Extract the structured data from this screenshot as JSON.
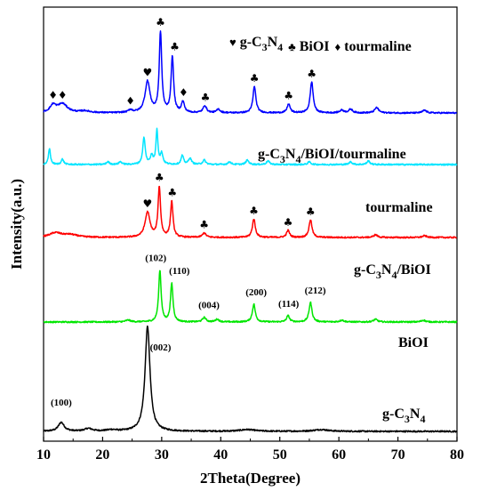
{
  "chart_data": {
    "type": "line",
    "xlabel": "2Theta(Degree)",
    "ylabel": "Intensity(a.u.)",
    "xlim": [
      10,
      80
    ],
    "xticks": [
      10,
      20,
      30,
      40,
      50,
      60,
      70,
      80
    ],
    "grid": false,
    "legend": {
      "placement": "top-right",
      "entries": [
        {
          "symbol": "♥",
          "name": "g-C",
          "sub1": "3",
          "mid": "N",
          "sub2": "4",
          "symbol_color": "#000000"
        },
        {
          "symbol": "♣",
          "name": "BiOI",
          "symbol_color": "#000000"
        },
        {
          "symbol": "♦",
          "name": "tourmaline",
          "symbol_color": "#000000"
        }
      ]
    },
    "series": [
      {
        "name": "g-C3N4",
        "label": {
          "main": "g-C",
          "sub1": "3",
          "mid": "N",
          "sub2": "4"
        },
        "color": "#000000",
        "base": 0,
        "baseline": 3,
        "peaks": [
          [
            13.0,
            10,
            0.6
          ],
          [
            17.6,
            3,
            0.8
          ],
          [
            21.5,
            1.5,
            1.0
          ],
          [
            27.6,
            118,
            0.5
          ],
          [
            44.5,
            2,
            1.5
          ],
          [
            57.0,
            2,
            1.5
          ]
        ],
        "annotations": [
          {
            "text": "(100)",
            "x": 13.0
          },
          {
            "text": "(002)",
            "x": 29.8
          }
        ]
      },
      {
        "name": "BiOI",
        "label": {
          "main": "BiOI"
        },
        "color": "#00e600",
        "base": 122,
        "baseline": 4,
        "peaks": [
          [
            24.3,
            2,
            0.5
          ],
          [
            29.7,
            58,
            0.25
          ],
          [
            31.7,
            43,
            0.25
          ],
          [
            37.2,
            5,
            0.35
          ],
          [
            39.4,
            3,
            0.35
          ],
          [
            45.6,
            20,
            0.3
          ],
          [
            51.4,
            7,
            0.3
          ],
          [
            55.2,
            22,
            0.3
          ],
          [
            60.5,
            2,
            0.4
          ],
          [
            66.2,
            3,
            0.4
          ],
          [
            74.3,
            2,
            0.4
          ]
        ],
        "annotations": [
          {
            "text": "(102)",
            "x": 29.0
          },
          {
            "text": "(110)",
            "x": 33.0
          },
          {
            "text": "(004)",
            "x": 38.0
          },
          {
            "text": "(200)",
            "x": 46.0
          },
          {
            "text": "(114)",
            "x": 51.5
          },
          {
            "text": "(212)",
            "x": 56.0
          }
        ]
      },
      {
        "name": "g-C3N4/BiOI",
        "label": {
          "main": "g-C",
          "sub1": "3",
          "mid": "N",
          "sub2": "4",
          "tail": "/BiOI"
        },
        "color": "#ff0000",
        "base": 215,
        "baseline": 6,
        "peaks": [
          [
            12.0,
            5,
            1.2
          ],
          [
            14.5,
            3,
            1.5
          ],
          [
            27.6,
            28,
            0.5
          ],
          [
            29.6,
            56,
            0.25
          ],
          [
            31.7,
            40,
            0.25
          ],
          [
            37.2,
            5,
            0.35
          ],
          [
            45.6,
            21,
            0.3
          ],
          [
            51.4,
            8,
            0.3
          ],
          [
            55.2,
            20,
            0.3
          ],
          [
            66.2,
            3,
            0.4
          ],
          [
            74.5,
            2,
            0.4
          ]
        ],
        "markers": [
          {
            "symbol": "♥",
            "x": 27.6
          },
          {
            "symbol": "♣",
            "x": 29.6
          },
          {
            "symbol": "♣",
            "x": 31.8
          },
          {
            "symbol": "♣",
            "x": 37.2
          },
          {
            "symbol": "♣",
            "x": 45.6
          },
          {
            "symbol": "♣",
            "x": 51.4
          },
          {
            "symbol": "♣",
            "x": 55.2
          }
        ]
      },
      {
        "name": "tourmaline",
        "label": {
          "main": "tourmaline"
        },
        "color": "#00e5ff",
        "base": 300,
        "baseline": 3,
        "peaks": [
          [
            11.0,
            18,
            0.2
          ],
          [
            13.2,
            6,
            0.25
          ],
          [
            20.9,
            3,
            0.3
          ],
          [
            23.0,
            3,
            0.3
          ],
          [
            27.0,
            30,
            0.25
          ],
          [
            28.3,
            10,
            0.25
          ],
          [
            29.2,
            38,
            0.2
          ],
          [
            30.0,
            12,
            0.25
          ],
          [
            33.5,
            10,
            0.25
          ],
          [
            34.8,
            7,
            0.3
          ],
          [
            37.2,
            5,
            0.3
          ],
          [
            41.5,
            3,
            0.3
          ],
          [
            44.5,
            5,
            0.3
          ],
          [
            48.0,
            4,
            0.3
          ],
          [
            55.0,
            3,
            0.3
          ],
          [
            62.0,
            3,
            0.3
          ],
          [
            65.0,
            4,
            0.3
          ]
        ]
      },
      {
        "name": "g-C3N4/BiOI/tourmaline",
        "label": {
          "main": "g-C",
          "sub1": "3",
          "mid": "N",
          "sub2": "4",
          "tail": "/BiOI/tourmaline"
        },
        "color": "#0000ff",
        "base": 355,
        "baseline": 6,
        "peaks": [
          [
            11.6,
            8,
            0.6
          ],
          [
            13.2,
            10,
            1.0
          ],
          [
            17.0,
            2,
            1.0
          ],
          [
            24.7,
            3,
            0.4
          ],
          [
            27.6,
            35,
            0.5
          ],
          [
            29.8,
            90,
            0.25
          ],
          [
            31.8,
            63,
            0.25
          ],
          [
            33.6,
            12,
            0.3
          ],
          [
            37.3,
            8,
            0.35
          ],
          [
            39.6,
            4,
            0.35
          ],
          [
            45.7,
            30,
            0.3
          ],
          [
            51.5,
            10,
            0.3
          ],
          [
            55.4,
            35,
            0.3
          ],
          [
            60.5,
            3,
            0.4
          ],
          [
            62.0,
            4,
            0.4
          ],
          [
            66.4,
            6,
            0.4
          ],
          [
            74.5,
            3,
            0.4
          ]
        ],
        "markers": [
          {
            "symbol": "♦",
            "x": 11.6
          },
          {
            "symbol": "♦",
            "x": 13.2
          },
          {
            "symbol": "♦",
            "x": 24.7
          },
          {
            "symbol": "♥",
            "x": 27.6
          },
          {
            "symbol": "♣",
            "x": 29.8
          },
          {
            "symbol": "♣",
            "x": 32.2
          },
          {
            "symbol": "♦",
            "x": 33.7
          },
          {
            "symbol": "♣",
            "x": 37.4
          },
          {
            "symbol": "♣",
            "x": 45.7
          },
          {
            "symbol": "♣",
            "x": 51.5
          },
          {
            "symbol": "♣",
            "x": 55.4
          }
        ]
      }
    ]
  }
}
